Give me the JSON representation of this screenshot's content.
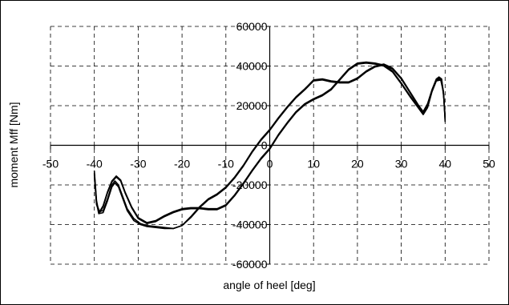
{
  "chart_data": {
    "type": "line",
    "title": "",
    "xlabel": "angle of heel [deg]",
    "ylabel": "moment Mff [Nm]",
    "xlim": [
      -50,
      50
    ],
    "ylim": [
      -60000,
      60000
    ],
    "x_ticks": [
      -50,
      -40,
      -30,
      -20,
      -10,
      0,
      10,
      20,
      30,
      40,
      50
    ],
    "y_ticks": [
      -60000,
      -40000,
      -20000,
      0,
      20000,
      40000,
      60000
    ],
    "grid": true,
    "legend": "none",
    "line_color": "#000000",
    "series": [
      {
        "x": [
          -40,
          -39.5,
          -39,
          -38,
          -37,
          -36,
          -35.3,
          -34.5,
          -33.5,
          -32.5,
          -31,
          -29.5,
          -28,
          -26,
          -24,
          -22,
          -20,
          -18,
          -16,
          -14,
          -12,
          -10,
          -8,
          -6,
          -4,
          -2,
          0,
          2,
          4,
          6,
          8,
          10,
          12,
          14,
          16,
          18,
          20,
          22,
          24,
          26,
          28,
          30,
          32,
          34,
          35,
          36,
          37,
          38,
          38.6,
          39.2,
          39.7,
          40
        ],
        "y": [
          -13000,
          -28000,
          -33500,
          -33000,
          -27000,
          -20000,
          -18000,
          -20000,
          -26000,
          -32000,
          -37000,
          -39500,
          -40500,
          -41000,
          -41500,
          -42000,
          -40500,
          -36000,
          -31000,
          -27000,
          -24500,
          -21000,
          -16000,
          -10000,
          -3000,
          3000,
          8000,
          14000,
          19500,
          24500,
          28500,
          33000,
          33500,
          32500,
          32000,
          32000,
          34000,
          37500,
          40000,
          41000,
          39000,
          34000,
          27000,
          20000,
          17000,
          21000,
          28000,
          33500,
          34500,
          33500,
          25000,
          12000
        ]
      },
      {
        "x": [
          -40,
          -39.5,
          -39,
          -38,
          -37,
          -36,
          -35.3,
          -34.5,
          -33.5,
          -32.5,
          -31,
          -29.5,
          -28,
          -26,
          -24,
          -22,
          -20,
          -18,
          -16,
          -14,
          -12,
          -10,
          -8,
          -6,
          -4,
          -2,
          0,
          2,
          4,
          6,
          8,
          10,
          12,
          14,
          16,
          18,
          20,
          22,
          24,
          26,
          28,
          30,
          32,
          34,
          35,
          36,
          37,
          38,
          38.6,
          39.2,
          39.7,
          40
        ],
        "y": [
          -14000,
          -29000,
          -34500,
          -34000,
          -28000,
          -21000,
          -19000,
          -21000,
          -27000,
          -33000,
          -38000,
          -40000,
          -41000,
          -41500,
          -42000,
          -42000,
          -40500,
          -36500,
          -31500,
          -27500,
          -25000,
          -21500,
          -16500,
          -10500,
          -3500,
          2500,
          7500,
          13500,
          19000,
          24000,
          28000,
          32500,
          33000,
          32000,
          31500,
          31500,
          33500,
          37000,
          39500,
          40500,
          38500,
          33500,
          26500,
          19500,
          16500,
          20500,
          27500,
          33000,
          34000,
          33000,
          24000,
          13000
        ]
      },
      {
        "x": [
          -40,
          -39.5,
          -38.8,
          -38,
          -37,
          -36,
          -35,
          -34,
          -33,
          -31.5,
          -30,
          -28,
          -26,
          -24,
          -22,
          -20,
          -18,
          -16,
          -14,
          -12,
          -10,
          -8,
          -6,
          -4,
          -2,
          0,
          2,
          4,
          6,
          8,
          10,
          12,
          14,
          16,
          18,
          20,
          22,
          24,
          26,
          28,
          30,
          32,
          34,
          35,
          36,
          37,
          38,
          39,
          39.6,
          40
        ],
        "y": [
          -15000,
          -30000,
          -34000,
          -31000,
          -24000,
          -18500,
          -16000,
          -18000,
          -24000,
          -31500,
          -37000,
          -39500,
          -38500,
          -36000,
          -34000,
          -32500,
          -32000,
          -32000,
          -32500,
          -32500,
          -30500,
          -25500,
          -19500,
          -13000,
          -7000,
          -2000,
          5000,
          11000,
          16500,
          20500,
          23000,
          25000,
          28000,
          33000,
          38000,
          41000,
          41500,
          41000,
          40000,
          37000,
          31000,
          24500,
          18500,
          15500,
          19000,
          27000,
          32500,
          33000,
          27000,
          14000
        ]
      },
      {
        "x": [
          -40,
          -39.5,
          -38.8,
          -38,
          -37,
          -36,
          -35,
          -34,
          -33,
          -31.5,
          -30,
          -28,
          -26,
          -24,
          -22,
          -20,
          -18,
          -16,
          -14,
          -12,
          -10,
          -8,
          -6,
          -4,
          -2,
          0,
          2,
          4,
          6,
          8,
          10,
          12,
          14,
          16,
          18,
          20,
          22,
          24,
          26,
          28,
          30,
          32,
          34,
          35,
          36,
          37,
          38,
          39,
          39.6,
          40
        ],
        "y": [
          -14500,
          -29500,
          -33500,
          -30500,
          -23500,
          -18000,
          -15500,
          -17500,
          -23500,
          -31000,
          -36500,
          -39000,
          -38000,
          -35500,
          -33500,
          -32000,
          -31500,
          -31500,
          -32000,
          -32000,
          -30000,
          -25000,
          -19000,
          -12500,
          -6500,
          -1500,
          5500,
          11500,
          17000,
          21000,
          23500,
          25500,
          28500,
          33500,
          38500,
          41500,
          42000,
          41500,
          40500,
          37500,
          31500,
          25000,
          19000,
          16000,
          19500,
          27500,
          33000,
          33500,
          27500,
          14500
        ]
      }
    ]
  }
}
